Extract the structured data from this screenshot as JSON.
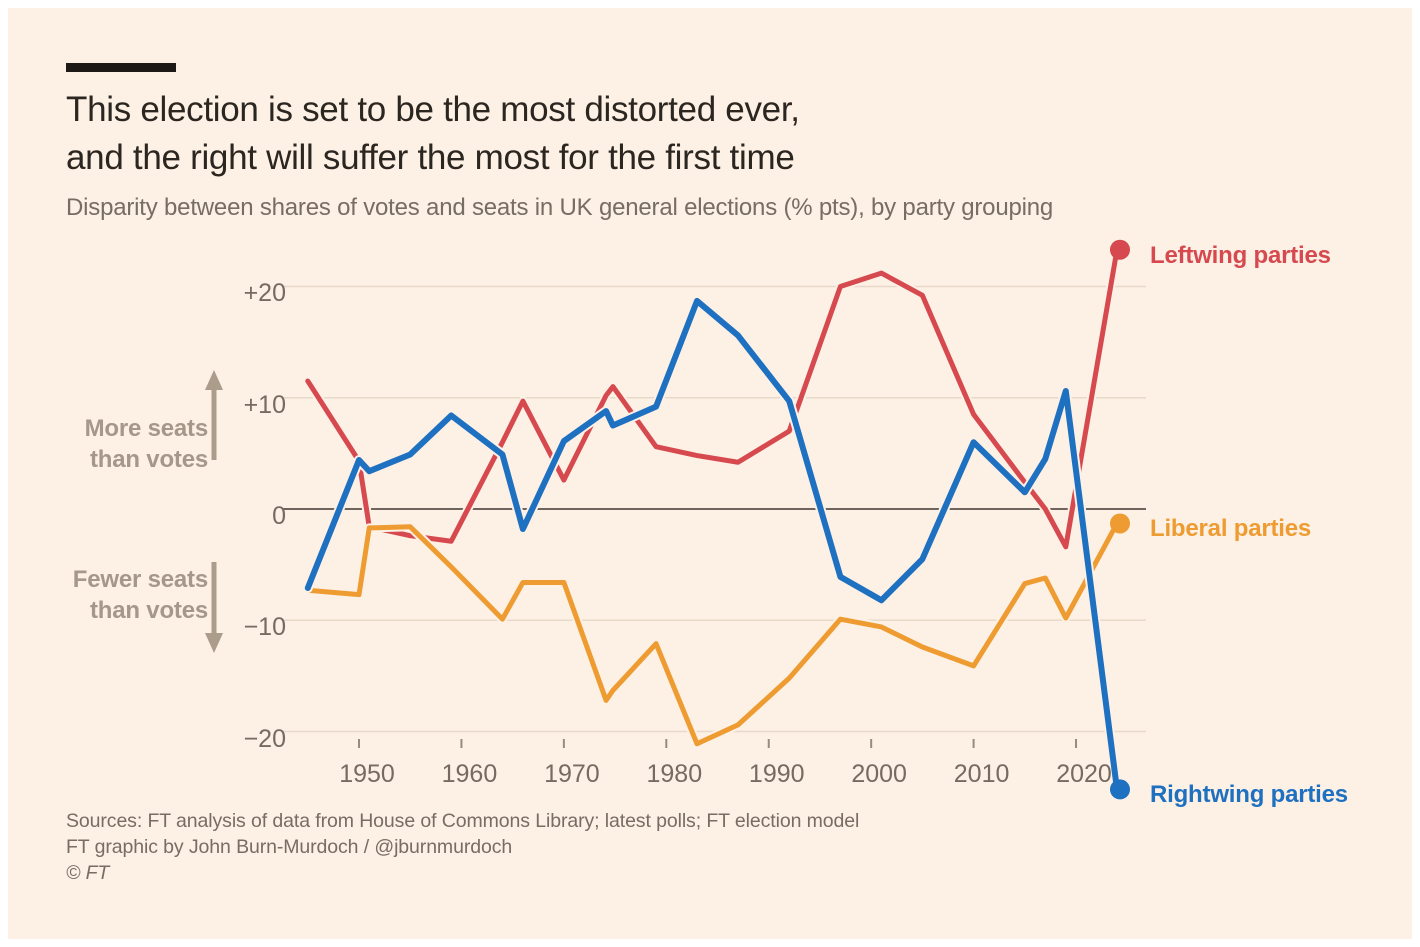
{
  "page": {
    "title_line1": "This election is set to be the most distorted ever,",
    "title_line2": "and the right will suffer the most for the first time",
    "subtitle": "Disparity between shares of votes and seats in UK general elections (% pts), by party grouping",
    "sources_line1": "Sources: FT analysis of data from House of Commons Library; latest polls; FT election model",
    "sources_line2": "FT graphic by John Burn-Murdoch / @jburnmurdoch",
    "sources_line3": "© FT"
  },
  "colors": {
    "background": "#fdf0e5",
    "halo": "#fdf0e5",
    "gridline": "#e8dac9",
    "zero_line": "#6e665e",
    "tick": "#968b7e",
    "annotation": "#a5978a",
    "arrow": "#ab9c8c",
    "title_text": "#2b2620",
    "muted_text": "#766d63"
  },
  "annotations": {
    "more_seats_line1": "More seats",
    "more_seats_line2": "than votes",
    "fewer_seats_line1": "Fewer seats",
    "fewer_seats_line2": "than votes"
  },
  "chart_data": {
    "type": "line",
    "title": "Disparity between shares of votes and seats in UK general elections (% pts), by party grouping",
    "xlabel": "",
    "ylabel": "",
    "xlim": [
      1944,
      2025
    ],
    "ylim": [
      -26,
      24
    ],
    "grid": "horizontal",
    "legend_position": "right-of-line-ends",
    "x": [
      1945,
      1950,
      1951,
      1955,
      1959,
      1964,
      1966,
      1970,
      1974.12,
      1974.79,
      1979,
      1983,
      1987,
      1992,
      1997,
      2001,
      2005,
      2010,
      2015,
      2017,
      2019,
      2024
    ],
    "x_ticks": [
      {
        "value": 1950,
        "label": "1950"
      },
      {
        "value": 1960,
        "label": "1960"
      },
      {
        "value": 1970,
        "label": "1970"
      },
      {
        "value": 1980,
        "label": "1980"
      },
      {
        "value": 1990,
        "label": "1990"
      },
      {
        "value": 2000,
        "label": "2000"
      },
      {
        "value": 2010,
        "label": "2010"
      },
      {
        "value": 2020,
        "label": "2020"
      }
    ],
    "y_ticks": [
      {
        "value": 20,
        "label": "+20"
      },
      {
        "value": 10,
        "label": "+10"
      },
      {
        "value": 0,
        "label": "0"
      },
      {
        "value": -10,
        "label": "−10"
      },
      {
        "value": -20,
        "label": "−20"
      }
    ],
    "series": [
      {
        "name": "Leftwing parties",
        "color": "#d6494e",
        "width": 5,
        "values": [
          11.5,
          4.3,
          -1.6,
          -2.4,
          -2.9,
          6.0,
          9.7,
          2.6,
          10.2,
          11.0,
          5.6,
          4.8,
          4.2,
          7.0,
          20.0,
          21.2,
          19.2,
          8.5,
          2.4,
          0.0,
          -3.4,
          23.3
        ]
      },
      {
        "name": "Liberal parties",
        "color": "#ee9c31",
        "width": 5,
        "values": [
          -7.3,
          -7.7,
          -1.7,
          -1.6,
          -5.2,
          -9.9,
          -6.6,
          -6.6,
          -17.2,
          -16.3,
          -12.1,
          -21.1,
          -19.4,
          -15.2,
          -9.9,
          -10.6,
          -12.4,
          -14.1,
          -6.7,
          -6.2,
          -9.8,
          -1.3
        ]
      },
      {
        "name": "Rightwing parties",
        "color": "#1e70c0",
        "width": 6,
        "values": [
          -7.1,
          4.4,
          3.4,
          4.9,
          8.4,
          4.9,
          -1.8,
          6.1,
          8.8,
          7.5,
          9.2,
          18.7,
          15.6,
          9.7,
          -6.1,
          -8.2,
          -4.5,
          6.0,
          1.5,
          4.5,
          10.6,
          -25.2
        ]
      }
    ]
  }
}
